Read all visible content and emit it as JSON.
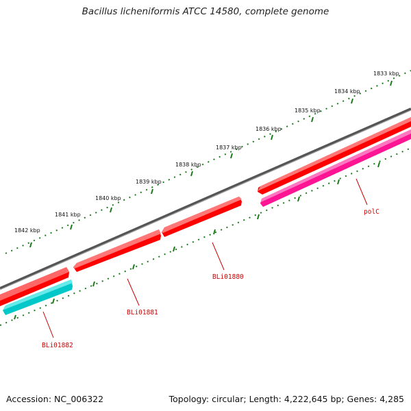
{
  "title": "Bacillus licheniformis ATCC 14580, complete genome",
  "footer": {
    "accession": "Accession: NC_006322",
    "summary": "Topology: circular; Length: 4,222,645 bp; Genes: 4,285"
  },
  "scale_labels": [
    "1833 kbp",
    "1834 kbp",
    "1835 kbp",
    "1836 kbp",
    "1837 kbp",
    "1838 kbp",
    "1839 kbp",
    "1840 kbp",
    "1841 kbp",
    "1842 kbp"
  ],
  "genes": [
    {
      "name": "BLi01882",
      "strand": "reverse",
      "color": "#00c8c8"
    },
    {
      "name": "BLi01881",
      "strand": "forward",
      "color": "#ff0000"
    },
    {
      "name": "BLi01880",
      "strand": "forward",
      "color": "#ff0000"
    },
    {
      "name": "polC",
      "strand": "reverse",
      "color": "#ff1493"
    }
  ],
  "colors": {
    "backbone": "#777777",
    "scale_ticks": "#1a7a1a",
    "label_text": "#cc0000"
  }
}
